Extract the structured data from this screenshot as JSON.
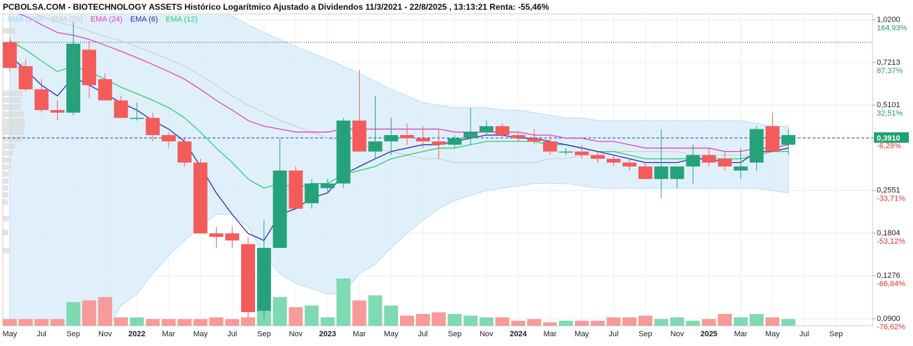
{
  "chart_data": {
    "type": "candlestick",
    "title": "PCBOLSA.COM - BIOTECHNOLOGY ASSETS Histórico Logarítmico Ajustado a Dividendos 11/3/2021 - 22/8/2025 , 13:13:21 Renta: -55,46%",
    "scale": "log",
    "ylim": [
      0.085,
      1.07
    ],
    "grid": true,
    "legend_position": "top-left",
    "legend": [
      {
        "label": "SMA (100)",
        "color": "#a9d3f0"
      },
      {
        "label": "SMA (20)",
        "color": "#c9c9c9"
      },
      {
        "label": "EMA (24)",
        "color": "#e040c8"
      },
      {
        "label": "EMA (6)",
        "color": "#2a2ab8"
      },
      {
        "label": "EMA (12)",
        "color": "#2ecc71"
      }
    ],
    "x_ticks": [
      "May",
      "Jul",
      "Sep",
      "Nov",
      "2022",
      "Mar",
      "May",
      "Jul",
      "Sep",
      "Nov",
      "2023",
      "Mar",
      "May",
      "Jul",
      "Sep",
      "Nov",
      "2024",
      "Mar",
      "May",
      "Jul",
      "Sep",
      "Nov",
      "2025",
      "Mar",
      "May",
      "Jul",
      "Sep"
    ],
    "x_tick_month_index": [
      2,
      4,
      6,
      8,
      10,
      12,
      14,
      16,
      18,
      20,
      22,
      24,
      26,
      28,
      30,
      32,
      34,
      36,
      38,
      40,
      42,
      44,
      46,
      48,
      50,
      52,
      54
    ],
    "y_ticks": [
      {
        "value": 1.02,
        "label": "1,0200",
        "pct": "164,93%"
      },
      {
        "value": 0.7213,
        "label": "0,7213",
        "pct": "87,37%"
      },
      {
        "value": 0.5101,
        "label": "0,5101",
        "pct": "32,51%"
      },
      {
        "value": 0.391,
        "label": "0,3910",
        "pct": "-6,28%"
      },
      {
        "value": 0.2551,
        "label": "0,2551",
        "pct": "-33,71%"
      },
      {
        "value": 0.1804,
        "label": "0,1804",
        "pct": "-53,12%"
      },
      {
        "value": 0.1276,
        "label": "0,1276",
        "pct": "-66,84%"
      },
      {
        "value": 0.09,
        "label": "0,0900",
        "pct": "-76,62%"
      }
    ],
    "last_price": {
      "value": 0.391,
      "label": "0,3910"
    },
    "reference_line": 0.85,
    "candles": [
      {
        "o": 0.85,
        "h": 0.88,
        "l": 0.67,
        "c": 0.69
      },
      {
        "o": 0.7,
        "h": 0.74,
        "l": 0.57,
        "c": 0.58
      },
      {
        "o": 0.58,
        "h": 0.63,
        "l": 0.48,
        "c": 0.49
      },
      {
        "o": 0.49,
        "h": 0.53,
        "l": 0.45,
        "c": 0.48
      },
      {
        "o": 0.48,
        "h": 1.0,
        "l": 0.47,
        "c": 0.84
      },
      {
        "o": 0.8,
        "h": 0.86,
        "l": 0.54,
        "c": 0.6
      },
      {
        "o": 0.63,
        "h": 0.66,
        "l": 0.53,
        "c": 0.53
      },
      {
        "o": 0.53,
        "h": 0.55,
        "l": 0.46,
        "c": 0.46
      },
      {
        "o": 0.46,
        "h": 0.52,
        "l": 0.45,
        "c": 0.46
      },
      {
        "o": 0.46,
        "h": 0.48,
        "l": 0.38,
        "c": 0.4
      },
      {
        "o": 0.4,
        "h": 0.41,
        "l": 0.36,
        "c": 0.38
      },
      {
        "o": 0.38,
        "h": 0.39,
        "l": 0.31,
        "c": 0.32
      },
      {
        "o": 0.32,
        "h": 0.33,
        "l": 0.18,
        "c": 0.18
      },
      {
        "o": 0.18,
        "h": 0.19,
        "l": 0.16,
        "c": 0.175
      },
      {
        "o": 0.18,
        "h": 0.19,
        "l": 0.16,
        "c": 0.17
      },
      {
        "o": 0.165,
        "h": 0.175,
        "l": 0.09,
        "c": 0.095
      },
      {
        "o": 0.096,
        "h": 0.2,
        "l": 0.09,
        "c": 0.16
      },
      {
        "o": 0.16,
        "h": 0.39,
        "l": 0.16,
        "c": 0.3
      },
      {
        "o": 0.3,
        "h": 0.31,
        "l": 0.22,
        "c": 0.22
      },
      {
        "o": 0.23,
        "h": 0.28,
        "l": 0.22,
        "c": 0.27
      },
      {
        "o": 0.26,
        "h": 0.28,
        "l": 0.25,
        "c": 0.27
      },
      {
        "o": 0.27,
        "h": 0.46,
        "l": 0.26,
        "c": 0.45
      },
      {
        "o": 0.45,
        "h": 0.68,
        "l": 0.35,
        "c": 0.35
      },
      {
        "o": 0.35,
        "h": 0.55,
        "l": 0.33,
        "c": 0.38
      },
      {
        "o": 0.38,
        "h": 0.46,
        "l": 0.34,
        "c": 0.4
      },
      {
        "o": 0.4,
        "h": 0.44,
        "l": 0.37,
        "c": 0.39
      },
      {
        "o": 0.39,
        "h": 0.43,
        "l": 0.36,
        "c": 0.38
      },
      {
        "o": 0.38,
        "h": 0.42,
        "l": 0.33,
        "c": 0.37
      },
      {
        "o": 0.37,
        "h": 0.4,
        "l": 0.36,
        "c": 0.39
      },
      {
        "o": 0.39,
        "h": 0.5,
        "l": 0.37,
        "c": 0.41
      },
      {
        "o": 0.41,
        "h": 0.45,
        "l": 0.4,
        "c": 0.43
      },
      {
        "o": 0.43,
        "h": 0.44,
        "l": 0.39,
        "c": 0.4
      },
      {
        "o": 0.4,
        "h": 0.41,
        "l": 0.38,
        "c": 0.39
      },
      {
        "o": 0.39,
        "h": 0.42,
        "l": 0.37,
        "c": 0.38
      },
      {
        "o": 0.38,
        "h": 0.4,
        "l": 0.34,
        "c": 0.35
      },
      {
        "o": 0.35,
        "h": 0.36,
        "l": 0.34,
        "c": 0.35
      },
      {
        "o": 0.35,
        "h": 0.37,
        "l": 0.33,
        "c": 0.34
      },
      {
        "o": 0.34,
        "h": 0.35,
        "l": 0.32,
        "c": 0.33
      },
      {
        "o": 0.33,
        "h": 0.34,
        "l": 0.31,
        "c": 0.32
      },
      {
        "o": 0.32,
        "h": 0.33,
        "l": 0.3,
        "c": 0.31
      },
      {
        "o": 0.31,
        "h": 0.32,
        "l": 0.28,
        "c": 0.28
      },
      {
        "o": 0.28,
        "h": 0.42,
        "l": 0.24,
        "c": 0.31
      },
      {
        "o": 0.28,
        "h": 0.31,
        "l": 0.26,
        "c": 0.31
      },
      {
        "o": 0.31,
        "h": 0.37,
        "l": 0.27,
        "c": 0.34
      },
      {
        "o": 0.34,
        "h": 0.36,
        "l": 0.31,
        "c": 0.32
      },
      {
        "o": 0.33,
        "h": 0.35,
        "l": 0.3,
        "c": 0.31
      },
      {
        "o": 0.3,
        "h": 0.36,
        "l": 0.28,
        "c": 0.31
      },
      {
        "o": 0.32,
        "h": 0.43,
        "l": 0.3,
        "c": 0.42
      },
      {
        "o": 0.43,
        "h": 0.48,
        "l": 0.35,
        "c": 0.35
      },
      {
        "o": 0.37,
        "h": 0.42,
        "l": 0.34,
        "c": 0.4
      }
    ],
    "volume": [
      4,
      4,
      4,
      4,
      14,
      15,
      17,
      5,
      5,
      4,
      4,
      4,
      4,
      5,
      4,
      5,
      10,
      17,
      11,
      12,
      5,
      28,
      15,
      18,
      12,
      6,
      7,
      8,
      7,
      6,
      5,
      5,
      3,
      4,
      2,
      3,
      3,
      3,
      5,
      5,
      6,
      4,
      5,
      3,
      4,
      7,
      5,
      7,
      5,
      4
    ],
    "ema6": [
      0.76,
      0.68,
      0.6,
      0.55,
      0.64,
      0.6,
      0.56,
      0.52,
      0.49,
      0.45,
      0.42,
      0.38,
      0.31,
      0.25,
      0.21,
      0.18,
      0.17,
      0.21,
      0.22,
      0.24,
      0.25,
      0.29,
      0.31,
      0.33,
      0.35,
      0.36,
      0.37,
      0.37,
      0.38,
      0.39,
      0.4,
      0.4,
      0.39,
      0.39,
      0.38,
      0.37,
      0.36,
      0.35,
      0.34,
      0.33,
      0.32,
      0.32,
      0.32,
      0.33,
      0.33,
      0.32,
      0.32,
      0.35,
      0.35,
      0.36
    ],
    "ema12": [
      0.86,
      0.8,
      0.73,
      0.67,
      0.7,
      0.67,
      0.63,
      0.59,
      0.56,
      0.53,
      0.5,
      0.46,
      0.41,
      0.36,
      0.32,
      0.28,
      0.26,
      0.27,
      0.26,
      0.27,
      0.27,
      0.29,
      0.3,
      0.31,
      0.33,
      0.34,
      0.35,
      0.36,
      0.36,
      0.37,
      0.38,
      0.38,
      0.38,
      0.38,
      0.37,
      0.37,
      0.36,
      0.35,
      0.35,
      0.34,
      0.33,
      0.33,
      0.33,
      0.33,
      0.33,
      0.33,
      0.33,
      0.34,
      0.35,
      0.35
    ],
    "ema24": [
      1.1,
      1.05,
      0.98,
      0.92,
      0.9,
      0.87,
      0.83,
      0.79,
      0.75,
      0.71,
      0.67,
      0.63,
      0.58,
      0.53,
      0.49,
      0.45,
      0.43,
      0.42,
      0.41,
      0.41,
      0.41,
      0.42,
      0.42,
      0.42,
      0.42,
      0.42,
      0.42,
      0.42,
      0.41,
      0.41,
      0.41,
      0.41,
      0.41,
      0.4,
      0.4,
      0.39,
      0.39,
      0.38,
      0.38,
      0.37,
      0.36,
      0.36,
      0.36,
      0.36,
      0.36,
      0.35,
      0.35,
      0.36,
      0.36,
      0.37
    ],
    "sma20": [
      1.15,
      1.1,
      1.05,
      1.0,
      0.97,
      0.93,
      0.89,
      0.86,
      0.82,
      0.78,
      0.74,
      0.7,
      0.65,
      0.6,
      0.55,
      0.51,
      0.48,
      0.45,
      0.43,
      0.41,
      0.39,
      0.38,
      0.37,
      0.36,
      0.35,
      0.34,
      0.33,
      0.33,
      0.32,
      0.32,
      0.32,
      0.32,
      0.32,
      0.32,
      0.33,
      0.33,
      0.34,
      0.34,
      0.35,
      0.35,
      0.35,
      0.35,
      0.35,
      0.34,
      0.34,
      0.34,
      0.34,
      0.34,
      0.35,
      0.36
    ],
    "band_upper": [
      1.4,
      1.4,
      1.4,
      1.4,
      1.4,
      1.4,
      1.4,
      1.38,
      1.36,
      1.33,
      1.3,
      1.26,
      1.2,
      1.12,
      1.05,
      0.98,
      0.92,
      0.87,
      0.82,
      0.78,
      0.74,
      0.7,
      0.66,
      0.62,
      0.58,
      0.55,
      0.52,
      0.51,
      0.5,
      0.5,
      0.5,
      0.49,
      0.49,
      0.48,
      0.47,
      0.46,
      0.46,
      0.45,
      0.45,
      0.45,
      0.45,
      0.45,
      0.45,
      0.45,
      0.45,
      0.45,
      0.45,
      0.44,
      0.43,
      0.43
    ],
    "band_lower": [
      0.08,
      0.08,
      0.08,
      0.08,
      0.08,
      0.08,
      0.08,
      0.1,
      0.11,
      0.13,
      0.15,
      0.17,
      0.19,
      0.21,
      0.21,
      0.19,
      0.15,
      0.13,
      0.12,
      0.115,
      0.11,
      0.11,
      0.13,
      0.14,
      0.16,
      0.18,
      0.2,
      0.22,
      0.235,
      0.245,
      0.255,
      0.26,
      0.265,
      0.27,
      0.27,
      0.27,
      0.265,
      0.26,
      0.26,
      0.26,
      0.26,
      0.26,
      0.26,
      0.26,
      0.26,
      0.26,
      0.26,
      0.26,
      0.255,
      0.25
    ]
  }
}
